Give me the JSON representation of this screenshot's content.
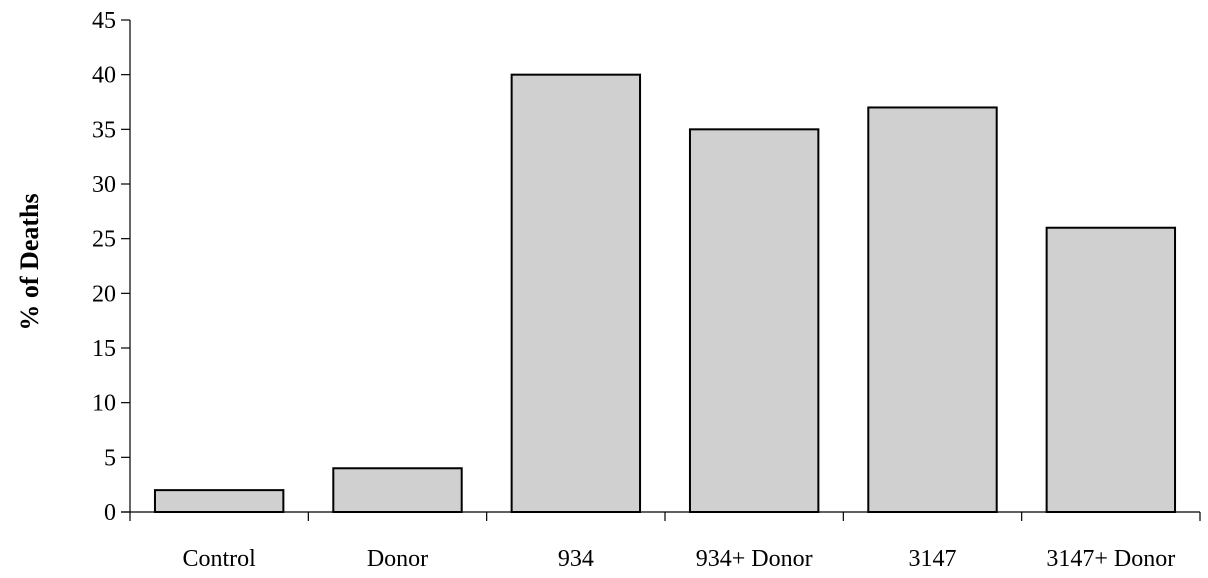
{
  "chart_data": {
    "type": "bar",
    "title": "",
    "xlabel": "",
    "ylabel": "% of Deaths",
    "categories": [
      "Control",
      "Donor",
      "934",
      "934+ Donor",
      "3147",
      "3147+ Donor"
    ],
    "values": [
      2,
      4,
      40,
      35,
      37,
      26
    ],
    "ylim": [
      0,
      45
    ],
    "yticks": [
      "0",
      "5",
      "10",
      "15",
      "20",
      "25",
      "30",
      "35",
      "40",
      "45"
    ],
    "grid": false,
    "legend": "none",
    "bar_color": "#d0d0d0",
    "bar_edge_color": "#000000"
  }
}
